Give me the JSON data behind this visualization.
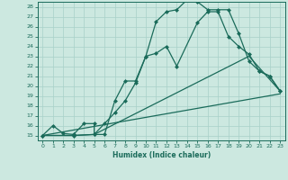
{
  "xlabel": "Humidex (Indice chaleur)",
  "bg_color": "#cce8e0",
  "grid_color": "#a8d0c8",
  "line_color": "#1a6b5a",
  "xlim": [
    -0.5,
    23.5
  ],
  "ylim": [
    14.5,
    28.5
  ],
  "xticks": [
    0,
    1,
    2,
    3,
    4,
    5,
    6,
    7,
    8,
    9,
    10,
    11,
    12,
    13,
    14,
    15,
    16,
    17,
    18,
    19,
    20,
    21,
    22,
    23
  ],
  "yticks": [
    15,
    16,
    17,
    18,
    19,
    20,
    21,
    22,
    23,
    24,
    25,
    26,
    27,
    28
  ],
  "line1_x": [
    0,
    1,
    2,
    3,
    4,
    5,
    5,
    6,
    7,
    8,
    9,
    10,
    11,
    12,
    13,
    14,
    15,
    16,
    17,
    18,
    19,
    20,
    21,
    22,
    23
  ],
  "line1_y": [
    15,
    16,
    15.2,
    15.1,
    16.2,
    16.2,
    15.1,
    15.1,
    18.5,
    20.5,
    20.5,
    23,
    26.5,
    27.5,
    27.7,
    28.7,
    28.5,
    27.7,
    27.7,
    27.7,
    25.3,
    22.5,
    21.5,
    21,
    19.5
  ],
  "line2_x": [
    0,
    3,
    5,
    6,
    7,
    8,
    9,
    10,
    11,
    12,
    13,
    15,
    16,
    17,
    18,
    19,
    20,
    21,
    22,
    23
  ],
  "line2_y": [
    15,
    15,
    15.1,
    16.2,
    17.3,
    18.5,
    20.3,
    23,
    23.3,
    24,
    22,
    26.4,
    27.5,
    27.5,
    25,
    24,
    23.2,
    21.5,
    21,
    19.5
  ],
  "line3_x": [
    0,
    23
  ],
  "line3_y": [
    15,
    19.2
  ],
  "line4_x": [
    0,
    3,
    5,
    20,
    23
  ],
  "line4_y": [
    15,
    15,
    15.1,
    23,
    19.5
  ],
  "marker_size": 2.5,
  "line_width": 0.9
}
